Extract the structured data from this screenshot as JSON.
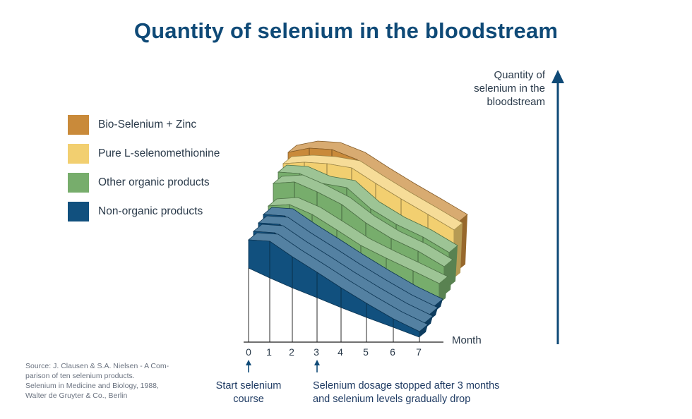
{
  "title": "Quantity of selenium in the bloodstream",
  "legend": {
    "items": [
      {
        "label": "Bio-Selenium + Zinc",
        "color": "#c98a3a"
      },
      {
        "label": "Pure L-selenomethionine",
        "color": "#f2cf70"
      },
      {
        "label": "Other organic products",
        "color": "#77ad6c"
      },
      {
        "label": "Non-organic products",
        "color": "#11507e"
      }
    ]
  },
  "axis": {
    "y_title_lines": [
      "Quantity of",
      "selenium in the",
      "bloodstream"
    ],
    "x_title": "Month"
  },
  "annotations": {
    "start_lines": [
      "Start selenium",
      "course"
    ],
    "stop_lines": [
      "Selenium dosage stopped after 3 months",
      "and selenium levels gradually drop"
    ]
  },
  "source_lines": [
    "Source: J. Clausen & S.A. Nielsen - A Com-",
    "parison of ten selenium products.",
    "Selenium in Medicine and Biology, 1988,",
    "Walter de Gruyter & Co., Berlin"
  ],
  "chart_data": {
    "type": "area",
    "title": "Quantity of selenium in the bloodstream",
    "xlabel": "Month",
    "ylabel": "Quantity of selenium in the bloodstream",
    "x": [
      0,
      1,
      2,
      3,
      4,
      5,
      6,
      7
    ],
    "series": [
      {
        "name": "Non-organic products",
        "color": "#11507e",
        "values": [
          1.0,
          1.3,
          1.1,
          0.9,
          0.7,
          0.5,
          0.3,
          0.2
        ]
      },
      {
        "name": "Non-organic products",
        "color": "#11507e",
        "values": [
          1.0,
          1.3,
          1.1,
          0.9,
          0.7,
          0.5,
          0.3,
          0.2
        ]
      },
      {
        "name": "Non-organic products",
        "color": "#11507e",
        "values": [
          1.0,
          1.3,
          1.1,
          0.9,
          0.7,
          0.5,
          0.3,
          0.2
        ]
      },
      {
        "name": "Non-organic products",
        "color": "#11507e",
        "values": [
          1.0,
          1.3,
          1.1,
          0.9,
          0.7,
          0.5,
          0.3,
          0.2
        ]
      },
      {
        "name": "Other organic products",
        "color": "#77ad6c",
        "values": [
          1.0,
          1.4,
          1.4,
          1.2,
          1.0,
          0.9,
          0.8,
          0.7
        ]
      },
      {
        "name": "Other organic products",
        "color": "#77ad6c",
        "values": [
          1.5,
          1.9,
          1.9,
          1.8,
          1.5,
          1.3,
          1.2,
          1.0
        ]
      },
      {
        "name": "Other organic products",
        "color": "#77ad6c",
        "values": [
          1.6,
          1.9,
          1.9,
          2.1,
          1.7,
          1.5,
          1.4,
          1.2
        ]
      },
      {
        "name": "Pure L-selenomethionine",
        "color": "#f2cf70",
        "values": [
          1.6,
          2.0,
          2.3,
          2.5,
          2.3,
          2.1,
          1.9,
          1.7
        ]
      },
      {
        "name": "Bio-Selenium + Zinc",
        "color": "#c98a3a",
        "values": [
          1.7,
          2.2,
          2.5,
          2.5,
          2.3,
          2.1,
          1.9,
          1.7
        ]
      }
    ]
  }
}
